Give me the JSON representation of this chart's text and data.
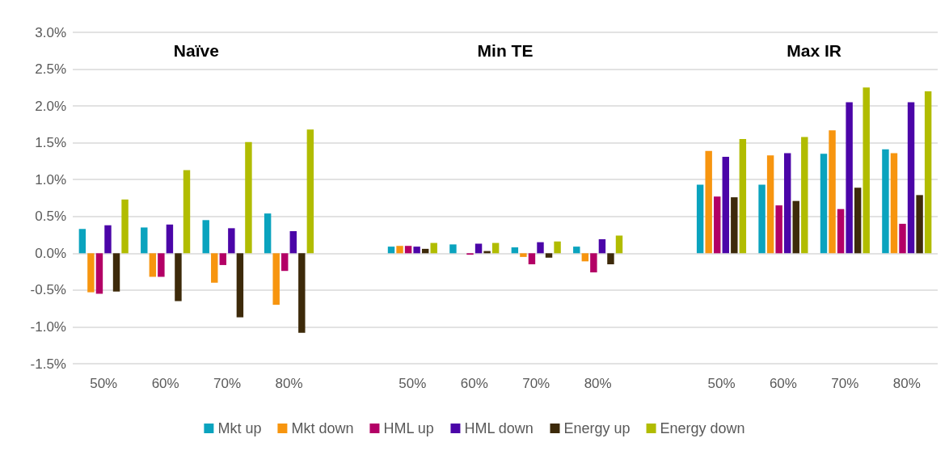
{
  "chart_data": {
    "type": "bar",
    "categories": [
      "50%",
      "60%",
      "70%",
      "80%",
      null,
      "50%",
      "60%",
      "70%",
      "80%",
      null,
      "50%",
      "60%",
      "70%",
      "80%"
    ],
    "series": [
      {
        "name": "Mkt up",
        "color": "#0aa3be",
        "values": [
          0.33,
          0.35,
          0.45,
          0.54,
          null,
          0.09,
          0.12,
          0.08,
          0.09,
          null,
          0.93,
          0.93,
          1.35,
          1.41
        ]
      },
      {
        "name": "Mkt down",
        "color": "#f7950f",
        "values": [
          -0.53,
          -0.32,
          -0.4,
          -0.7,
          null,
          0.1,
          0.0,
          -0.05,
          -0.11,
          null,
          1.39,
          1.33,
          1.67,
          1.36
        ]
      },
      {
        "name": "HML up",
        "color": "#b30066",
        "values": [
          -0.55,
          -0.32,
          -0.16,
          -0.24,
          null,
          0.1,
          -0.02,
          -0.15,
          -0.26,
          null,
          0.77,
          0.65,
          0.6,
          0.4
        ]
      },
      {
        "name": "HML down",
        "color": "#4b05a8",
        "values": [
          0.38,
          0.39,
          0.34,
          0.3,
          null,
          0.09,
          0.13,
          0.15,
          0.19,
          null,
          1.31,
          1.36,
          2.05,
          2.05
        ]
      },
      {
        "name": "Energy up",
        "color": "#3d2a0a",
        "values": [
          -0.52,
          -0.65,
          -0.87,
          -1.08,
          null,
          0.06,
          0.03,
          -0.06,
          -0.15,
          null,
          0.76,
          0.71,
          0.89,
          0.79
        ]
      },
      {
        "name": "Energy down",
        "color": "#b1bc00",
        "values": [
          0.73,
          1.13,
          1.51,
          1.68,
          null,
          0.14,
          0.14,
          0.16,
          0.24,
          null,
          1.55,
          1.58,
          2.25,
          2.2
        ]
      }
    ],
    "annotations": [
      "Naïve",
      "Min TE",
      "Max IR"
    ],
    "ylim": [
      -1.5,
      3.0
    ],
    "yticks": [
      {
        "value": -1.5,
        "label": "-1.5%"
      },
      {
        "value": -1.0,
        "label": "-1.0%"
      },
      {
        "value": -0.5,
        "label": "-0.5%"
      },
      {
        "value": 0,
        "label": "0.0%"
      },
      {
        "value": 0.5,
        "label": "0.5%"
      },
      {
        "value": 1.0,
        "label": "1.0%"
      },
      {
        "value": 1.5,
        "label": "1.5%"
      },
      {
        "value": 2.0,
        "label": "2.0%"
      },
      {
        "value": 2.5,
        "label": "2.5%"
      },
      {
        "value": 3.0,
        "label": "3.0%"
      }
    ],
    "grid": "y",
    "legend": "bottom"
  }
}
